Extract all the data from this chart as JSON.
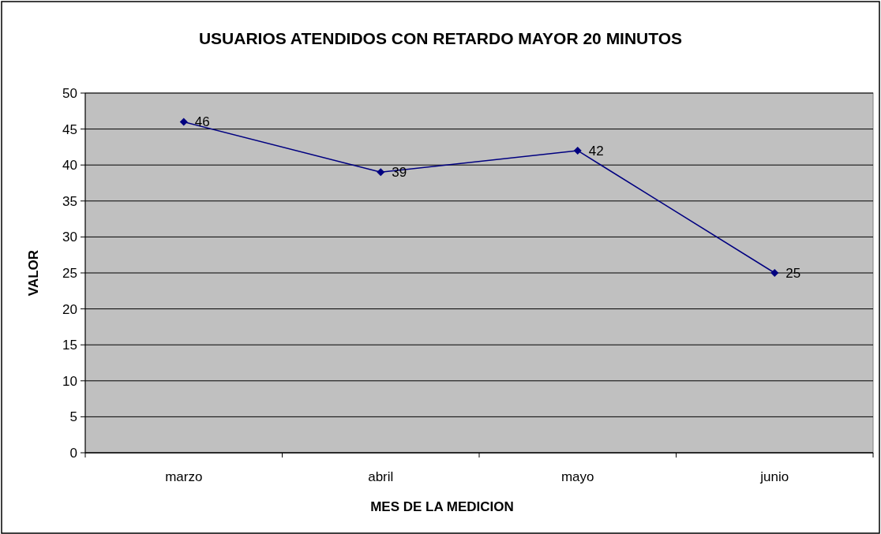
{
  "chart_data": {
    "type": "line",
    "title": "USUARIOS ATENDIDOS CON RETARDO MAYOR 20 MINUTOS",
    "xlabel": "MES DE LA MEDICION",
    "ylabel": "VALOR",
    "categories": [
      "marzo",
      "abril",
      "mayo",
      "junio"
    ],
    "series": [
      {
        "color": "#000080",
        "values": [
          46,
          39,
          42,
          25
        ]
      }
    ],
    "ylim": [
      0,
      50
    ],
    "yticks": [
      0,
      5,
      10,
      15,
      20,
      25,
      30,
      35,
      40,
      45,
      50
    ],
    "grid": "y",
    "marker": "diamond",
    "line_style": "solid",
    "data_labels": true
  }
}
